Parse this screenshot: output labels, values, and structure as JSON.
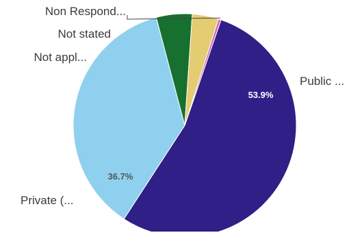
{
  "chart_data": {
    "type": "pie",
    "slices": [
      {
        "label": "Public ...",
        "value": 53.9,
        "data_label": "53.9%",
        "color": "#2f1f86",
        "label_color": "#ffffff"
      },
      {
        "label": "Private (...",
        "value": 36.7,
        "data_label": "36.7%",
        "color": "#8fd0ef",
        "label_color": "#555555"
      },
      {
        "label": "Not appl...",
        "value": 5.2,
        "data_label": "",
        "color": "#17702f",
        "label_color": "#3a3a3a"
      },
      {
        "label": "Not stated",
        "value": 3.8,
        "data_label": "",
        "color": "#e3cc72",
        "label_color": "#3a3a3a"
      },
      {
        "label": "Non Respond...",
        "value": 0.4,
        "data_label": "",
        "color": "#d86cb5",
        "label_color": "#3a3a3a"
      }
    ]
  }
}
